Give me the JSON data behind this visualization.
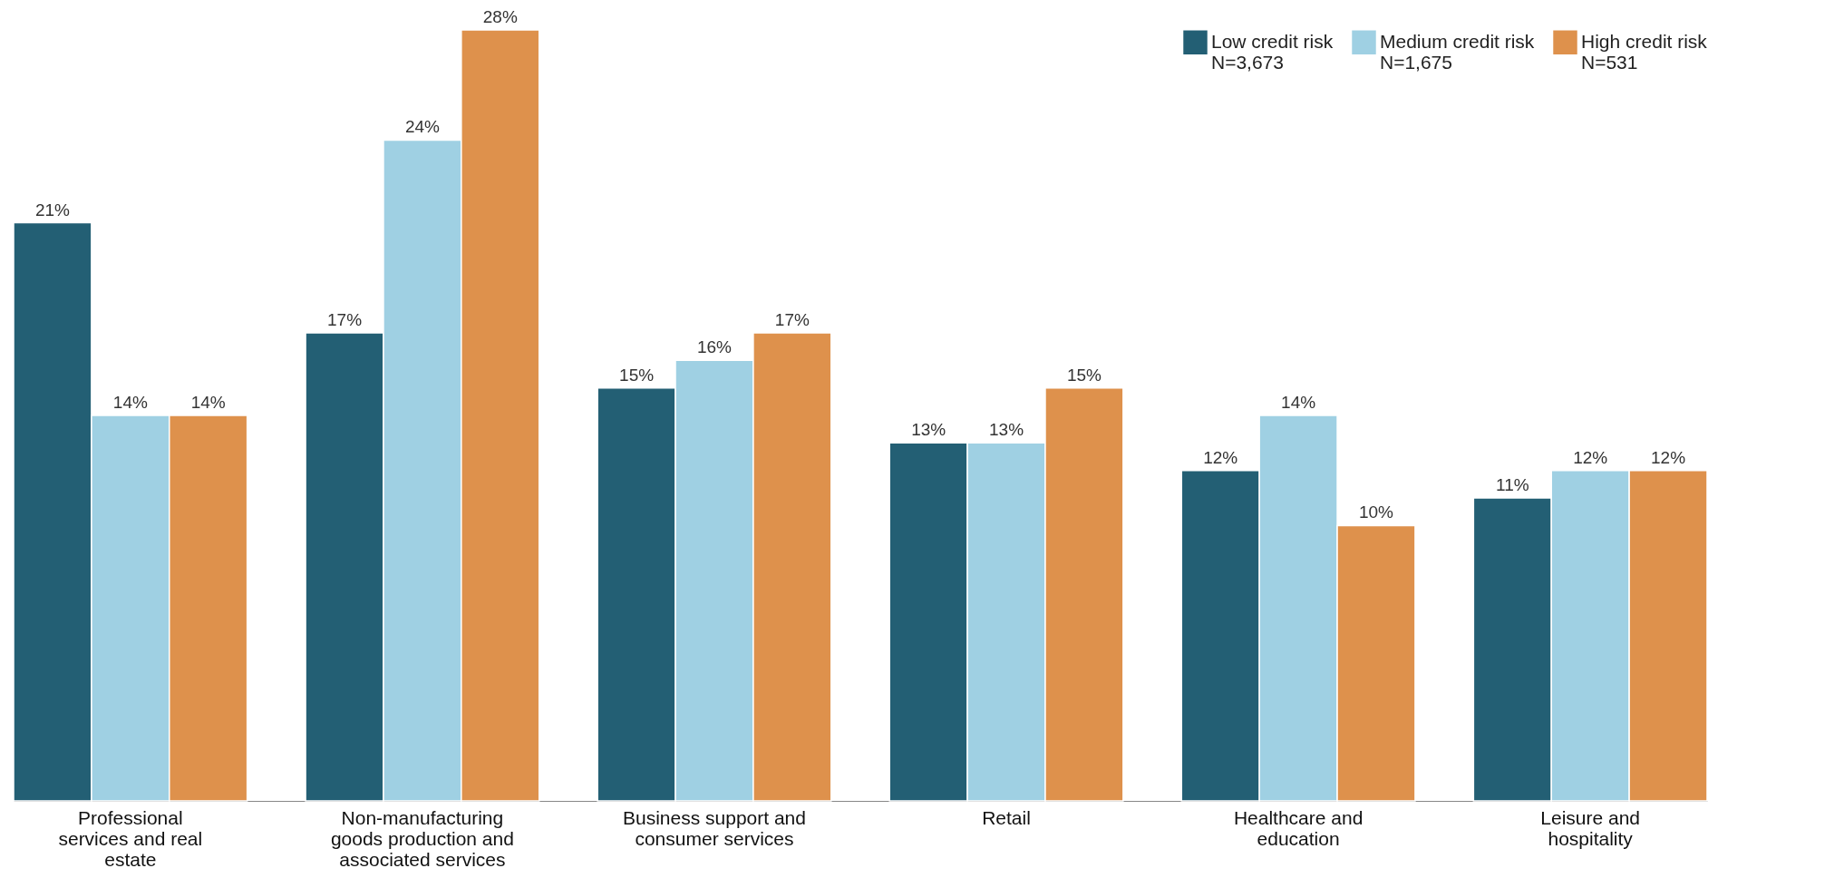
{
  "chart_data": {
    "type": "bar",
    "categories": [
      "Professional services and real estate",
      "Non-manufacturing goods production and associated services",
      "Business support and consumer services",
      "Retail",
      "Healthcare and education",
      "Leisure and hospitality"
    ],
    "series": [
      {
        "name": "Low credit risk\nN=3,673",
        "color": "#235f74",
        "values": [
          21,
          17,
          15,
          13,
          12,
          11
        ],
        "value_labels": [
          "21%",
          "17%",
          "15%",
          "13%",
          "12%",
          "11%"
        ]
      },
      {
        "name": "Medium credit risk\nN=1,675",
        "color": "#9fd0e3",
        "values": [
          14,
          24,
          16,
          13,
          14,
          12
        ],
        "value_labels": [
          "14%",
          "24%",
          "16%",
          "13%",
          "14%",
          "12%"
        ]
      },
      {
        "name": "High credit risk\nN=531",
        "color": "#de914c",
        "values": [
          14,
          28,
          17,
          15,
          10,
          12
        ],
        "value_labels": [
          "14%",
          "28%",
          "17%",
          "15%",
          "10%",
          "12%"
        ]
      }
    ],
    "legend": "top right",
    "tick_labels": "x",
    "grid": false
  }
}
